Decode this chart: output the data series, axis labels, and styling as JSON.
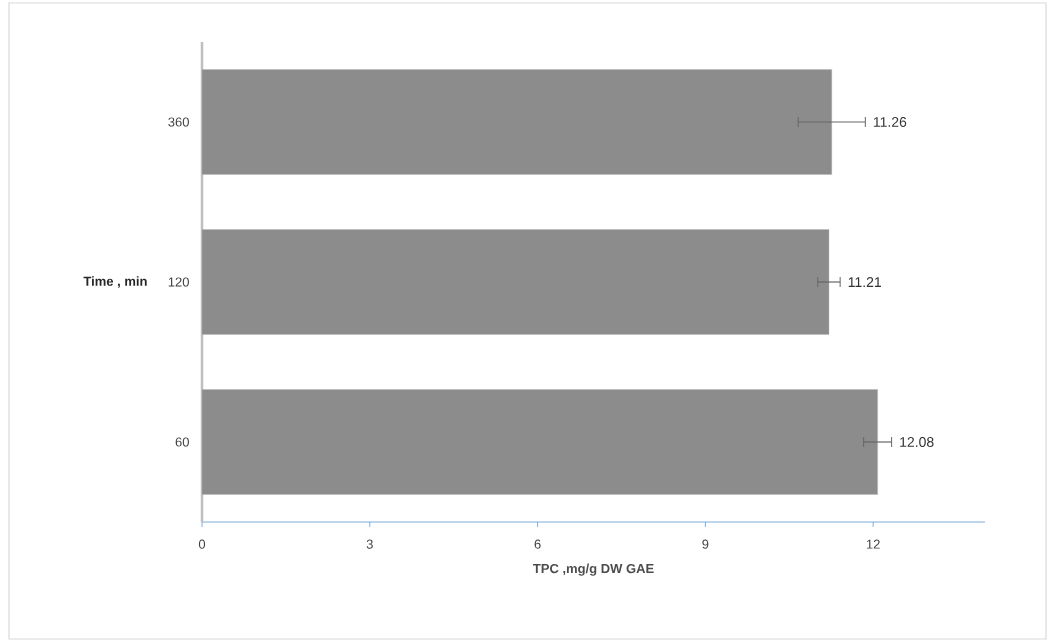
{
  "chart_data": {
    "type": "bar",
    "orientation": "horizontal",
    "categories": [
      "360",
      "120",
      "60"
    ],
    "values": [
      11.26,
      11.21,
      12.08
    ],
    "errors": [
      0.6,
      0.2,
      0.25
    ],
    "color": "#8c8c8c",
    "xlabel": "TPC ,mg/g DW GAE",
    "ylabel": "Time , min",
    "xlim": [
      0,
      14
    ],
    "xticks": [
      0,
      3,
      6,
      9,
      12
    ],
    "data_labels": true
  }
}
